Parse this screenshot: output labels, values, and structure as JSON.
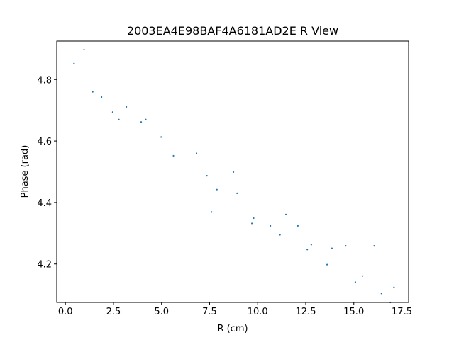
{
  "chart_data": {
    "type": "scatter",
    "title": "2003EA4E98BAF4A6181AD2E R View",
    "xlabel": "R (cm)",
    "ylabel": "Phase (rad)",
    "xlim": [
      -0.45,
      17.85
    ],
    "ylim": [
      4.075,
      4.925
    ],
    "xticks": [
      0.0,
      2.5,
      5.0,
      7.5,
      10.0,
      12.5,
      15.0,
      17.5
    ],
    "xtick_labels": [
      "0.0",
      "2.5",
      "5.0",
      "7.5",
      "10.0",
      "12.5",
      "15.0",
      "17.5"
    ],
    "yticks": [
      4.2,
      4.4,
      4.6,
      4.8
    ],
    "ytick_labels": [
      "4.2",
      "4.4",
      "4.6",
      "4.8"
    ],
    "grid": false,
    "marker_color": "#1f77b4",
    "points": [
      {
        "x": 0.45,
        "y": 4.852
      },
      {
        "x": 0.97,
        "y": 4.897
      },
      {
        "x": 1.42,
        "y": 4.76
      },
      {
        "x": 1.88,
        "y": 4.743
      },
      {
        "x": 2.46,
        "y": 4.694
      },
      {
        "x": 2.78,
        "y": 4.67
      },
      {
        "x": 3.17,
        "y": 4.711
      },
      {
        "x": 3.94,
        "y": 4.662
      },
      {
        "x": 4.18,
        "y": 4.67
      },
      {
        "x": 4.98,
        "y": 4.613
      },
      {
        "x": 5.62,
        "y": 4.552
      },
      {
        "x": 6.82,
        "y": 4.56
      },
      {
        "x": 7.36,
        "y": 4.487
      },
      {
        "x": 7.6,
        "y": 4.369
      },
      {
        "x": 7.88,
        "y": 4.442
      },
      {
        "x": 8.74,
        "y": 4.499
      },
      {
        "x": 8.93,
        "y": 4.43
      },
      {
        "x": 9.7,
        "y": 4.332
      },
      {
        "x": 9.79,
        "y": 4.349
      },
      {
        "x": 10.66,
        "y": 4.324
      },
      {
        "x": 11.16,
        "y": 4.295
      },
      {
        "x": 11.47,
        "y": 4.361
      },
      {
        "x": 12.09,
        "y": 4.324
      },
      {
        "x": 12.58,
        "y": 4.247
      },
      {
        "x": 12.79,
        "y": 4.263
      },
      {
        "x": 13.61,
        "y": 4.198
      },
      {
        "x": 13.86,
        "y": 4.251
      },
      {
        "x": 14.58,
        "y": 4.259
      },
      {
        "x": 15.08,
        "y": 4.141
      },
      {
        "x": 15.45,
        "y": 4.161
      },
      {
        "x": 16.06,
        "y": 4.259
      },
      {
        "x": 16.44,
        "y": 4.104
      },
      {
        "x": 16.9,
        "y": 4.075
      },
      {
        "x": 17.09,
        "y": 4.124
      }
    ]
  }
}
